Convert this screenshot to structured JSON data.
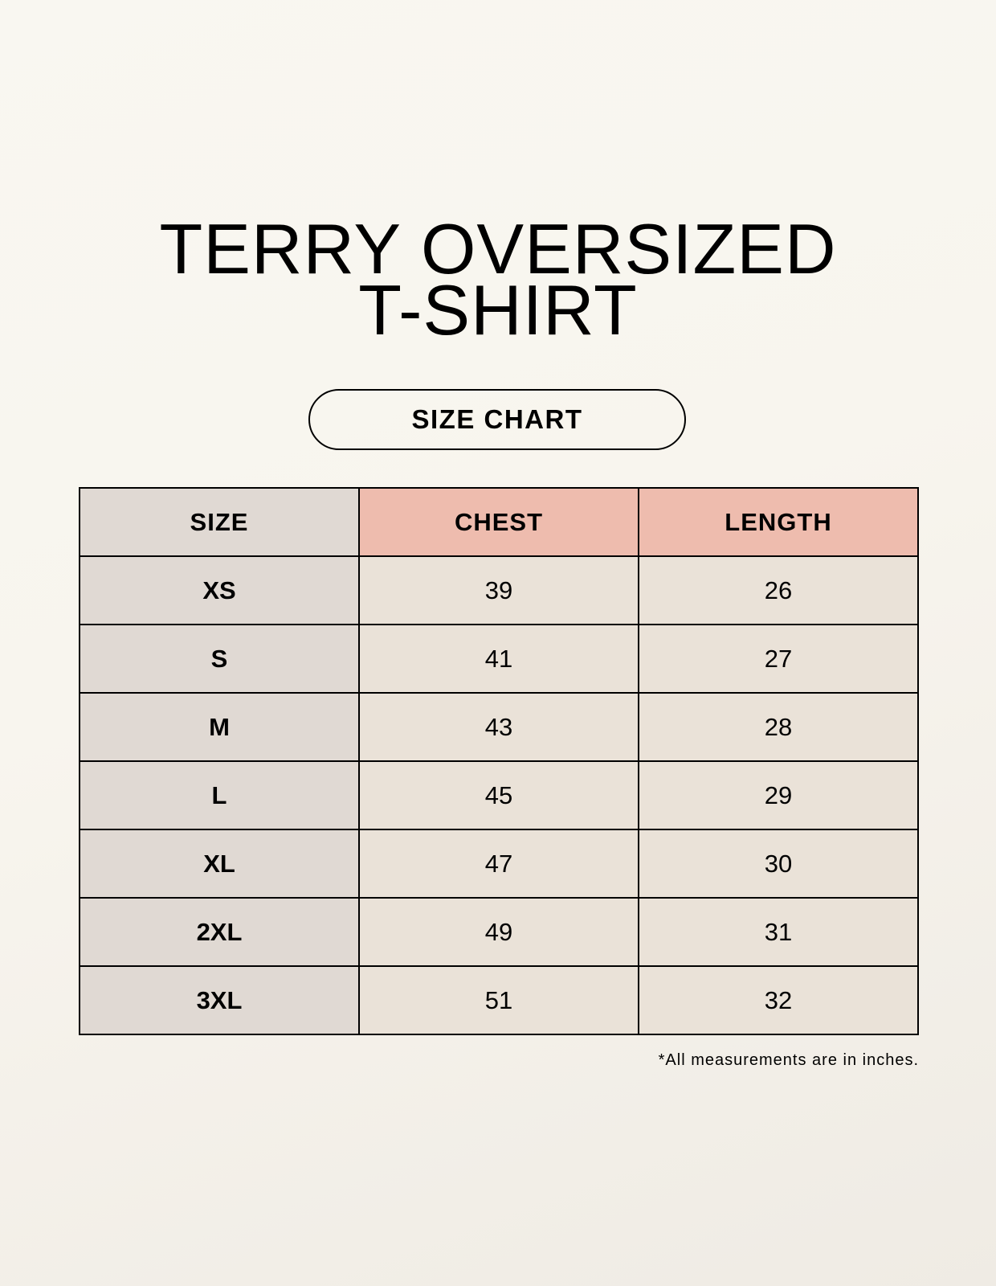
{
  "title_line1": "TERRY OVERSIZED",
  "title_line2": "T-SHIRT",
  "subtitle": "SIZE CHART",
  "headers": [
    "SIZE",
    "CHEST",
    "LENGTH"
  ],
  "rows": [
    {
      "size": "XS",
      "chest": "39",
      "length": "26"
    },
    {
      "size": "S",
      "chest": "41",
      "length": "27"
    },
    {
      "size": "M",
      "chest": "43",
      "length": "28"
    },
    {
      "size": "L",
      "chest": "45",
      "length": "29"
    },
    {
      "size": "XL",
      "chest": "47",
      "length": "30"
    },
    {
      "size": "2XL",
      "chest": "49",
      "length": "31"
    },
    {
      "size": "3XL",
      "chest": "51",
      "length": "32"
    }
  ],
  "footnote": "*All measurements are in inches.",
  "colors": {
    "size_column": "#e0d9d3",
    "header_accent": "#eebcae",
    "value_cells": "#eae2d8"
  }
}
